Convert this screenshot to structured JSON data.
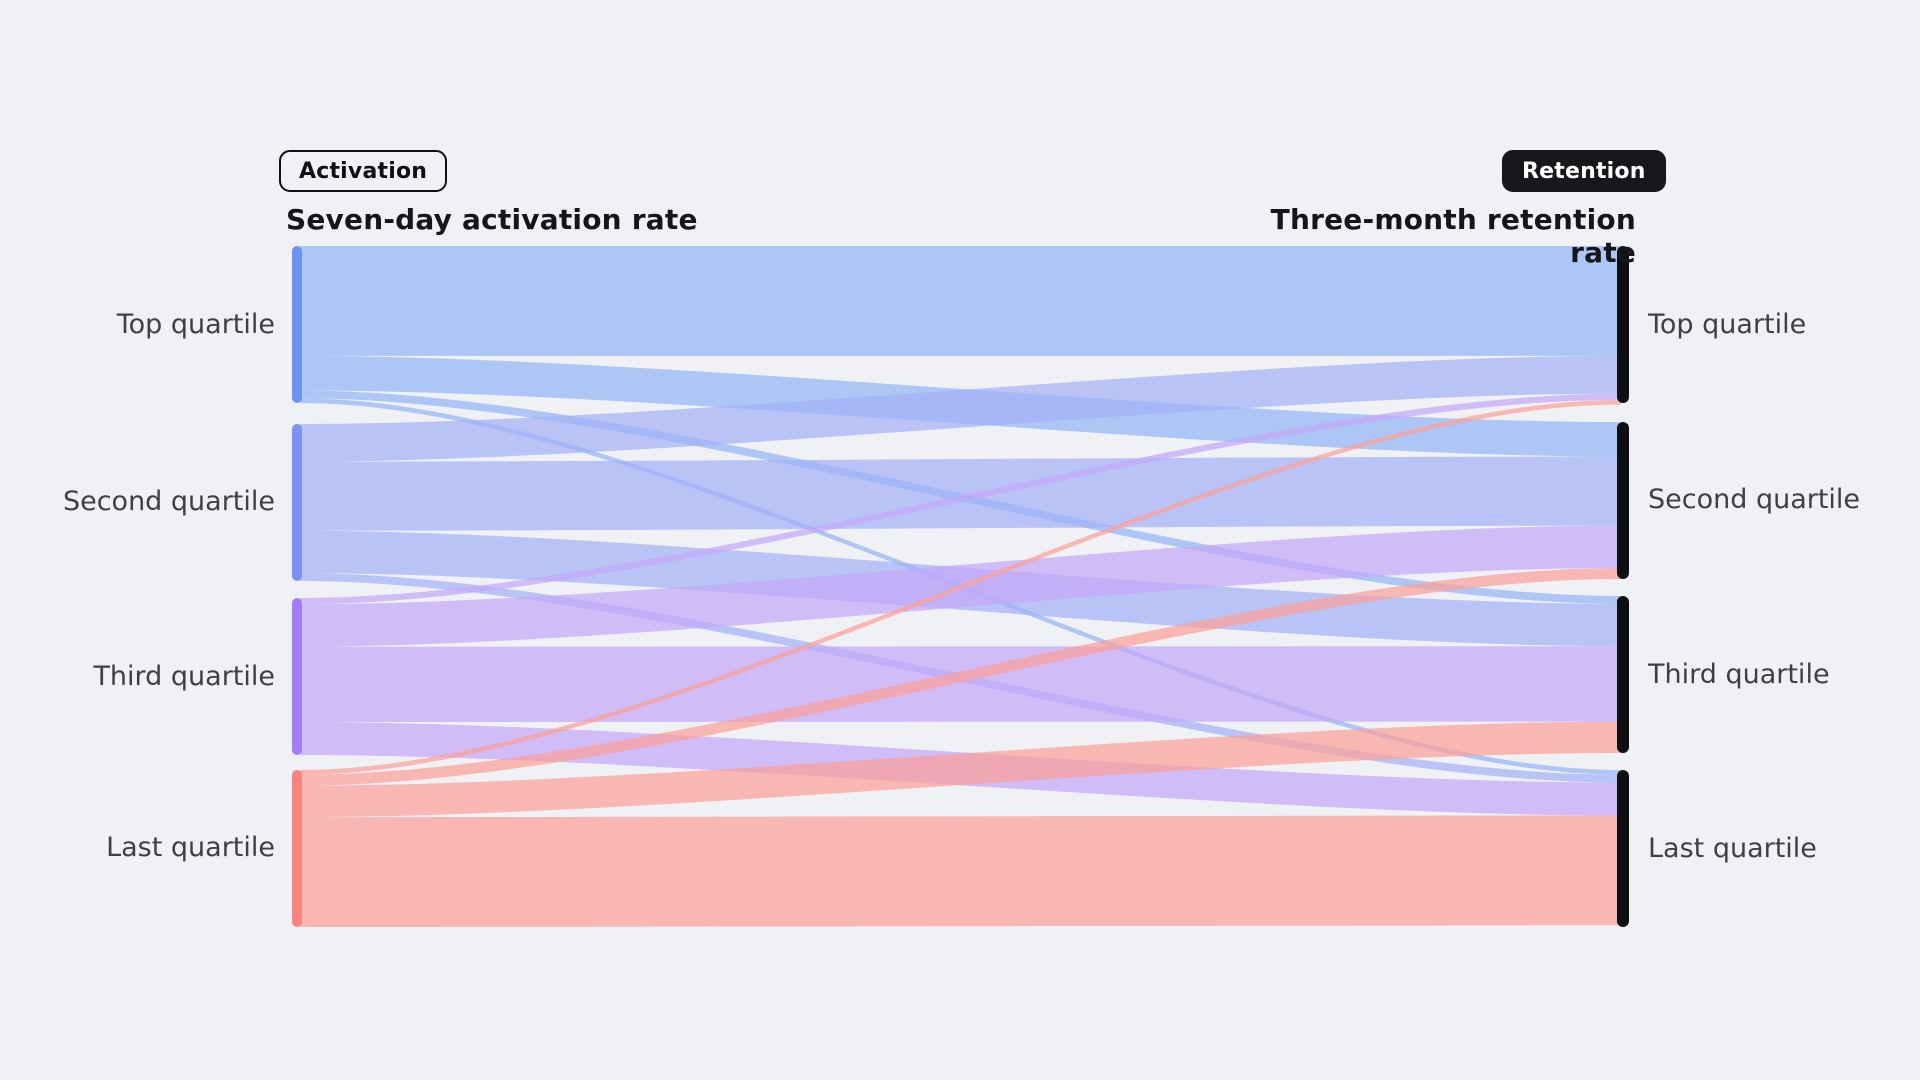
{
  "page": {
    "background_color": "#f0f1f5",
    "text_color": "#3f3f46",
    "heading_color": "#15151a"
  },
  "tags": {
    "activation": {
      "label": "Activation",
      "style": "outline",
      "border_color": "#101014"
    },
    "retention": {
      "label": "Retention",
      "style": "solid",
      "fill_color": "#17181c",
      "text_color": "#ffffff"
    }
  },
  "columns": {
    "left_title": "Seven-day activation rate",
    "right_title": "Three-month retention rate"
  },
  "chart_data": {
    "type": "sankey",
    "left_axis_label": "Seven-day activation rate",
    "right_axis_label": "Three-month retention rate",
    "right_node_bar_color": "#0d0e12",
    "flow_opacity": 0.72,
    "left_nodes": [
      {
        "label": "Top quartile",
        "bar_color": "#6d92f5",
        "flow_color": "#93b6f7"
      },
      {
        "label": "Second quartile",
        "bar_color": "#7e90f5",
        "flow_color": "#a3b1f6"
      },
      {
        "label": "Third quartile",
        "bar_color": "#a17ef7",
        "flow_color": "#c3a8f7"
      },
      {
        "label": "Last quartile",
        "bar_color": "#f9837d",
        "flow_color": "#fba199"
      }
    ],
    "right_nodes": [
      {
        "label": "Top quartile"
      },
      {
        "label": "Second quartile"
      },
      {
        "label": "Third quartile"
      },
      {
        "label": "Last quartile"
      }
    ],
    "links": [
      {
        "source": 0,
        "target": 0,
        "share_pct_of_source": 70
      },
      {
        "source": 0,
        "target": 1,
        "share_pct_of_source": 22
      },
      {
        "source": 0,
        "target": 2,
        "share_pct_of_source": 5
      },
      {
        "source": 0,
        "target": 3,
        "share_pct_of_source": 3
      },
      {
        "source": 1,
        "target": 0,
        "share_pct_of_source": 24
      },
      {
        "source": 1,
        "target": 1,
        "share_pct_of_source": 44
      },
      {
        "source": 1,
        "target": 2,
        "share_pct_of_source": 27
      },
      {
        "source": 1,
        "target": 3,
        "share_pct_of_source": 5
      },
      {
        "source": 2,
        "target": 0,
        "share_pct_of_source": 4
      },
      {
        "source": 2,
        "target": 1,
        "share_pct_of_source": 27
      },
      {
        "source": 2,
        "target": 2,
        "share_pct_of_source": 48
      },
      {
        "source": 2,
        "target": 3,
        "share_pct_of_source": 21
      },
      {
        "source": 3,
        "target": 0,
        "share_pct_of_source": 3
      },
      {
        "source": 3,
        "target": 1,
        "share_pct_of_source": 7
      },
      {
        "source": 3,
        "target": 2,
        "share_pct_of_source": 20
      },
      {
        "source": 3,
        "target": 3,
        "share_pct_of_source": 70
      }
    ]
  }
}
